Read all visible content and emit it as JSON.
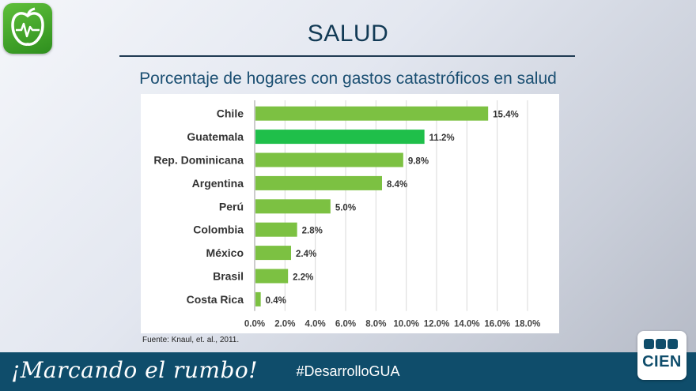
{
  "slide": {
    "title": "SALUD",
    "subtitle": "Porcentaje de hogares con gastos catastróficos en salud",
    "source": "Fuente: Knaul, et. al., 2011."
  },
  "footer": {
    "tagline": "¡Marcando el rumbo!",
    "hashtag": "#DesarrolloGUA",
    "logo_text": "CIEN"
  },
  "colors": {
    "bar": "#7cc142",
    "bar_highlight": "#1fbf4a",
    "footer_bg": "#0f4d6b",
    "title": "#123a55"
  },
  "chart_data": {
    "type": "bar",
    "orientation": "horizontal",
    "categories": [
      "Chile",
      "Guatemala",
      "Rep. Dominicana",
      "Argentina",
      "Perú",
      "Colombia",
      "México",
      "Brasil",
      "Costa Rica"
    ],
    "values": [
      15.4,
      11.2,
      9.8,
      8.4,
      5.0,
      2.8,
      2.4,
      2.2,
      0.4
    ],
    "value_labels": [
      "15.4%",
      "11.2%",
      "9.8%",
      "8.4%",
      "5.0%",
      "2.8%",
      "2.4%",
      "2.2%",
      "0.4%"
    ],
    "highlight": "Guatemala",
    "xlim": [
      0,
      18
    ],
    "xticks": [
      "0.0%",
      "2.0%",
      "4.0%",
      "6.0%",
      "8.0%",
      "10.0%",
      "12.0%",
      "14.0%",
      "16.0%",
      "18.0%"
    ],
    "title": "Porcentaje de hogares con gastos catastróficos en salud",
    "xlabel": "",
    "ylabel": "",
    "grid": true
  }
}
